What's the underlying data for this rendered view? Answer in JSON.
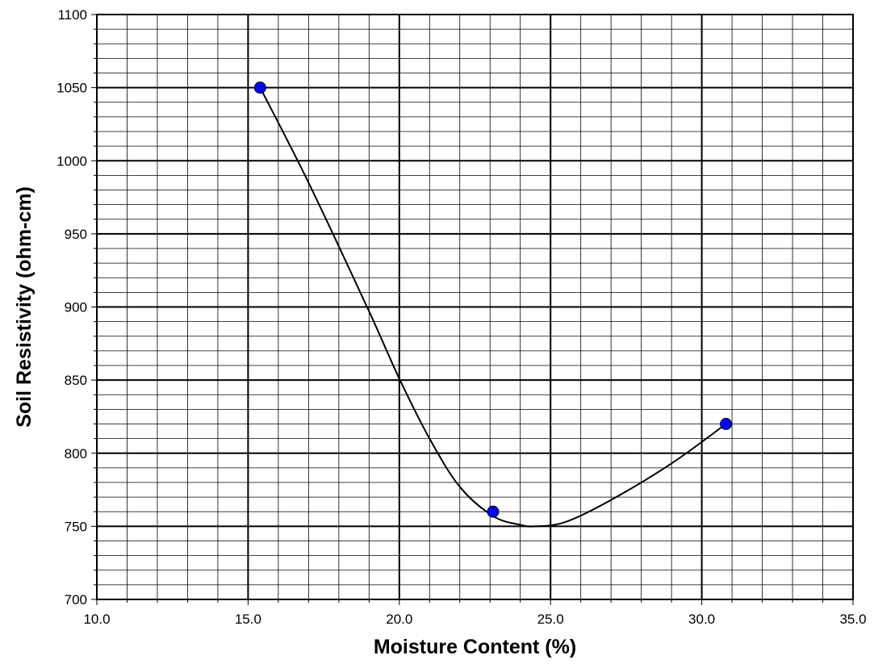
{
  "chart_data": {
    "type": "scatter",
    "title": "",
    "xlabel": "Moisture Content (%)",
    "ylabel": "Soil Resistivity (ohm-cm)",
    "xlim": [
      10.0,
      35.0
    ],
    "ylim": [
      700,
      1100
    ],
    "x_ticks": [
      "10.0",
      "15.0",
      "20.0",
      "25.0",
      "30.0",
      "35.0"
    ],
    "y_ticks": [
      "700",
      "750",
      "800",
      "850",
      "900",
      "950",
      "1000",
      "1050",
      "1100"
    ],
    "grid": true,
    "series": [
      {
        "points": [
          {
            "x": 15.4,
            "y": 1050
          },
          {
            "x": 23.1,
            "y": 760
          },
          {
            "x": 30.8,
            "y": 820
          }
        ],
        "marker_color": "#0000ff"
      }
    ],
    "trend_curve": {
      "x": [
        15.4,
        17.0,
        19.0,
        20.0,
        21.0,
        22.0,
        23.1,
        24.0,
        24.5,
        25.5,
        27.0,
        29.0,
        30.8
      ],
      "y": [
        1050,
        985,
        897,
        851,
        810,
        777,
        757,
        751,
        750,
        753,
        768,
        793,
        820
      ],
      "color": "#000000"
    }
  }
}
